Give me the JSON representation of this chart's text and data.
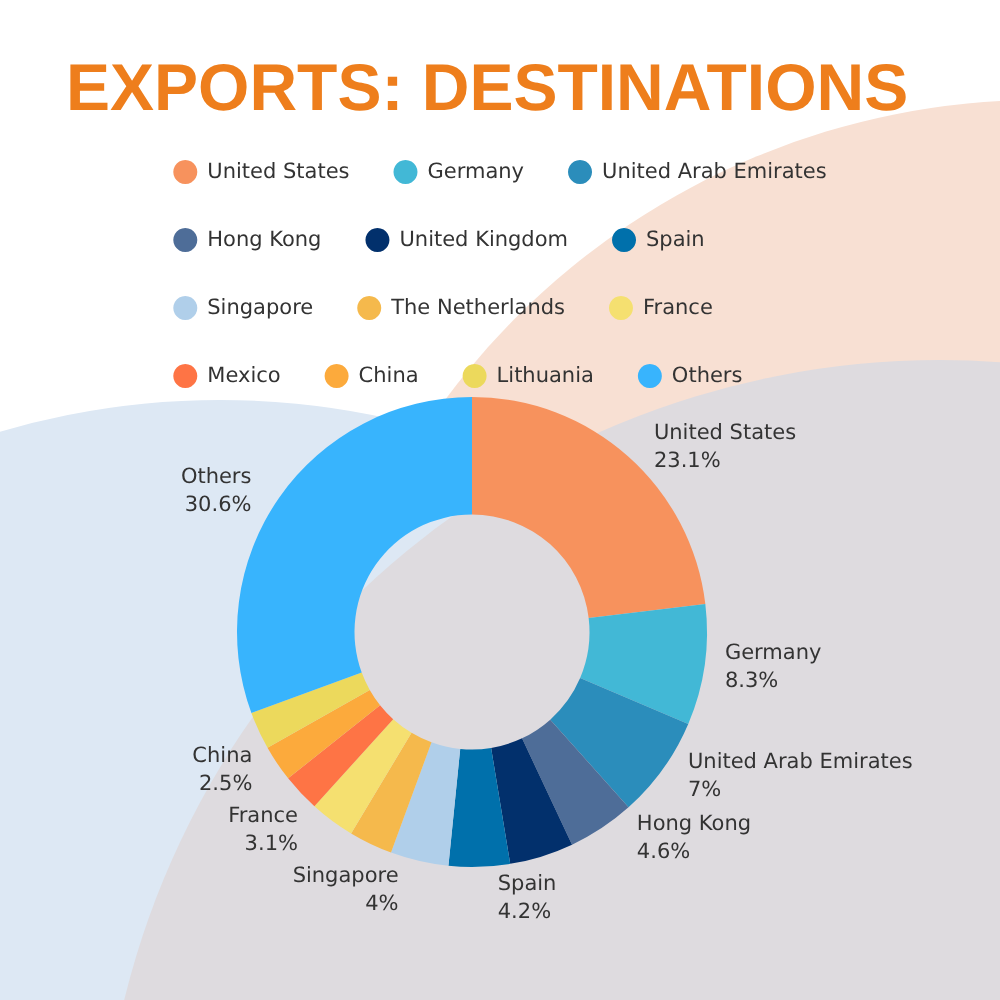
{
  "chart_data": {
    "type": "donut",
    "title": "EXPORTS: DESTINATIONS",
    "categories": [
      "United States",
      "Germany",
      "United Arab Emirates",
      "Hong Kong",
      "United Kingdom",
      "Spain",
      "Singapore",
      "The Netherlands",
      "France",
      "Mexico",
      "China",
      "Lithuania",
      "Others"
    ],
    "values": [
      23.1,
      8.3,
      7,
      4.6,
      4.4,
      4.2,
      4,
      3.0,
      3.1,
      2.6,
      2.5,
      2.6,
      30.6
    ],
    "value_labels": [
      "23.1%",
      "8.3%",
      "7%",
      "4.6%",
      null,
      "4.2%",
      "4%",
      null,
      "3.1%",
      null,
      "2.5%",
      null,
      "30.6%"
    ],
    "colors": [
      "#f7925d",
      "#42b8d6",
      "#2b8dbb",
      "#4e6d98",
      "#02306c",
      "#0070ab",
      "#b0cfea",
      "#f5b94c",
      "#f5e070",
      "#fe7445",
      "#fcaa3c",
      "#ecd95c",
      "#38b4fd"
    ],
    "legend": "top"
  }
}
